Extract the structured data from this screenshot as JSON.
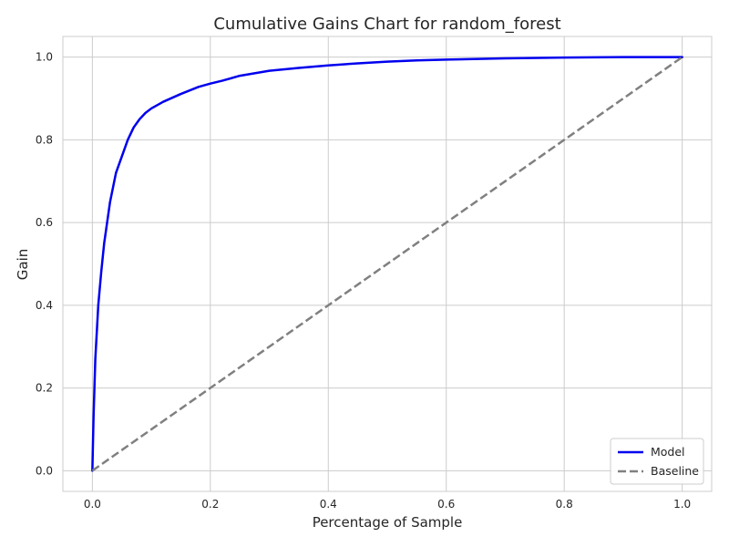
{
  "chart_data": {
    "type": "line",
    "title": "Cumulative Gains Chart for random_forest",
    "xlabel": "Percentage of Sample",
    "ylabel": "Gain",
    "xlim": [
      -0.05,
      1.05
    ],
    "ylim": [
      -0.05,
      1.05
    ],
    "xticks": [
      0.0,
      0.2,
      0.4,
      0.6,
      0.8,
      1.0
    ],
    "yticks": [
      0.0,
      0.2,
      0.4,
      0.6,
      0.8,
      1.0
    ],
    "xtick_labels": [
      "0.0",
      "0.2",
      "0.4",
      "0.6",
      "0.8",
      "1.0"
    ],
    "ytick_labels": [
      "0.0",
      "0.2",
      "0.4",
      "0.6",
      "0.8",
      "1.0"
    ],
    "grid": true,
    "legend_position": "bottom-right",
    "series": [
      {
        "name": "Model",
        "color": "#0000ee",
        "style": "solid",
        "x": [
          0.0,
          0.002,
          0.005,
          0.01,
          0.015,
          0.02,
          0.03,
          0.04,
          0.05,
          0.06,
          0.07,
          0.08,
          0.09,
          0.1,
          0.12,
          0.15,
          0.18,
          0.2,
          0.22,
          0.25,
          0.3,
          0.35,
          0.4,
          0.45,
          0.5,
          0.55,
          0.6,
          0.7,
          0.8,
          0.9,
          1.0
        ],
        "y": [
          0.0,
          0.13,
          0.27,
          0.4,
          0.48,
          0.55,
          0.65,
          0.72,
          0.76,
          0.8,
          0.83,
          0.85,
          0.865,
          0.876,
          0.892,
          0.911,
          0.928,
          0.936,
          0.943,
          0.955,
          0.967,
          0.974,
          0.98,
          0.985,
          0.989,
          0.992,
          0.994,
          0.997,
          0.999,
          1.0,
          1.0
        ]
      },
      {
        "name": "Baseline",
        "color": "#808080",
        "style": "dashed",
        "x": [
          0.0,
          1.0
        ],
        "y": [
          0.0,
          1.0
        ]
      }
    ]
  }
}
